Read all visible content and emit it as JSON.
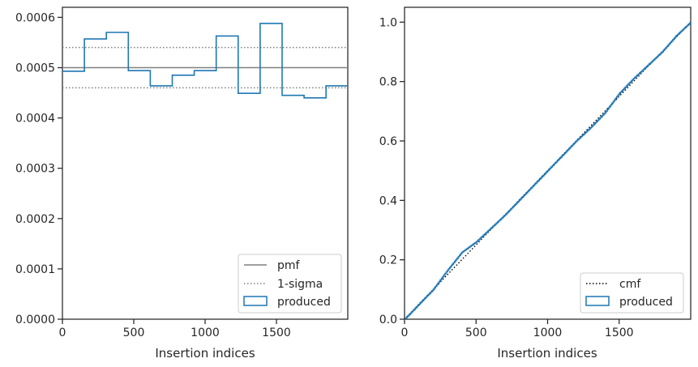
{
  "chart_data": [
    {
      "type": "histogram-step",
      "xlabel": "Insertion indices",
      "ylabel": "",
      "xlim": [
        0,
        2000
      ],
      "ylim": [
        0,
        0.00062
      ],
      "xticks": [
        0,
        500,
        1000,
        1500
      ],
      "xtick_labels": [
        "0",
        "500",
        "1000",
        "1500"
      ],
      "yticks": [
        0,
        0.0001,
        0.0002,
        0.0003,
        0.0004,
        0.0005,
        0.0006
      ],
      "ytick_labels": [
        "0.0000",
        "0.0001",
        "0.0002",
        "0.0003",
        "0.0004",
        "0.0005",
        "0.0006"
      ],
      "grid": false,
      "legend_position": "lower right",
      "bin_edges": [
        0,
        154,
        308,
        462,
        616,
        770,
        924,
        1078,
        1232,
        1386,
        1540,
        1694,
        1848,
        2000
      ],
      "series": [
        {
          "name": "produced",
          "style": "step",
          "color": "#1f77b4",
          "values": [
            0.000493,
            0.000557,
            0.00057,
            0.000494,
            0.000464,
            0.000485,
            0.000494,
            0.000563,
            0.000449,
            0.000588,
            0.000445,
            0.00044,
            0.000464
          ]
        }
      ],
      "reference_lines": [
        {
          "name": "pmf",
          "style": "solid",
          "color": "#808080",
          "y": 0.0005
        },
        {
          "name": "1-sigma",
          "style": "dotted",
          "color": "#808080",
          "y": [
            0.00054,
            0.00046
          ]
        }
      ],
      "legend": [
        "pmf",
        "1-sigma",
        "produced"
      ]
    },
    {
      "type": "line",
      "xlabel": "Insertion indices",
      "ylabel": "",
      "xlim": [
        0,
        2000
      ],
      "ylim": [
        0,
        1.05
      ],
      "xticks": [
        0,
        500,
        1000,
        1500
      ],
      "xtick_labels": [
        "0",
        "500",
        "1000",
        "1500"
      ],
      "yticks": [
        0,
        0.2,
        0.4,
        0.6,
        0.8,
        1.0
      ],
      "ytick_labels": [
        "0.0",
        "0.2",
        "0.4",
        "0.6",
        "0.8",
        "1.0"
      ],
      "grid": false,
      "legend_position": "lower right",
      "series": [
        {
          "name": "cmf",
          "style": "dotted",
          "color": "#000000",
          "x": [
            0,
            2000
          ],
          "y": [
            0,
            1.0
          ]
        },
        {
          "name": "produced",
          "style": "step",
          "color": "#1f77b4",
          "x": [
            0,
            100,
            200,
            300,
            400,
            500,
            600,
            700,
            800,
            900,
            1000,
            1100,
            1200,
            1300,
            1400,
            1500,
            1600,
            1700,
            1800,
            1900,
            2000
          ],
          "y": [
            0,
            0.05,
            0.1,
            0.165,
            0.225,
            0.26,
            0.305,
            0.35,
            0.4,
            0.45,
            0.5,
            0.55,
            0.6,
            0.645,
            0.695,
            0.76,
            0.81,
            0.855,
            0.9,
            0.955,
            1.0
          ]
        }
      ],
      "legend": [
        "cmf",
        "produced"
      ]
    }
  ]
}
